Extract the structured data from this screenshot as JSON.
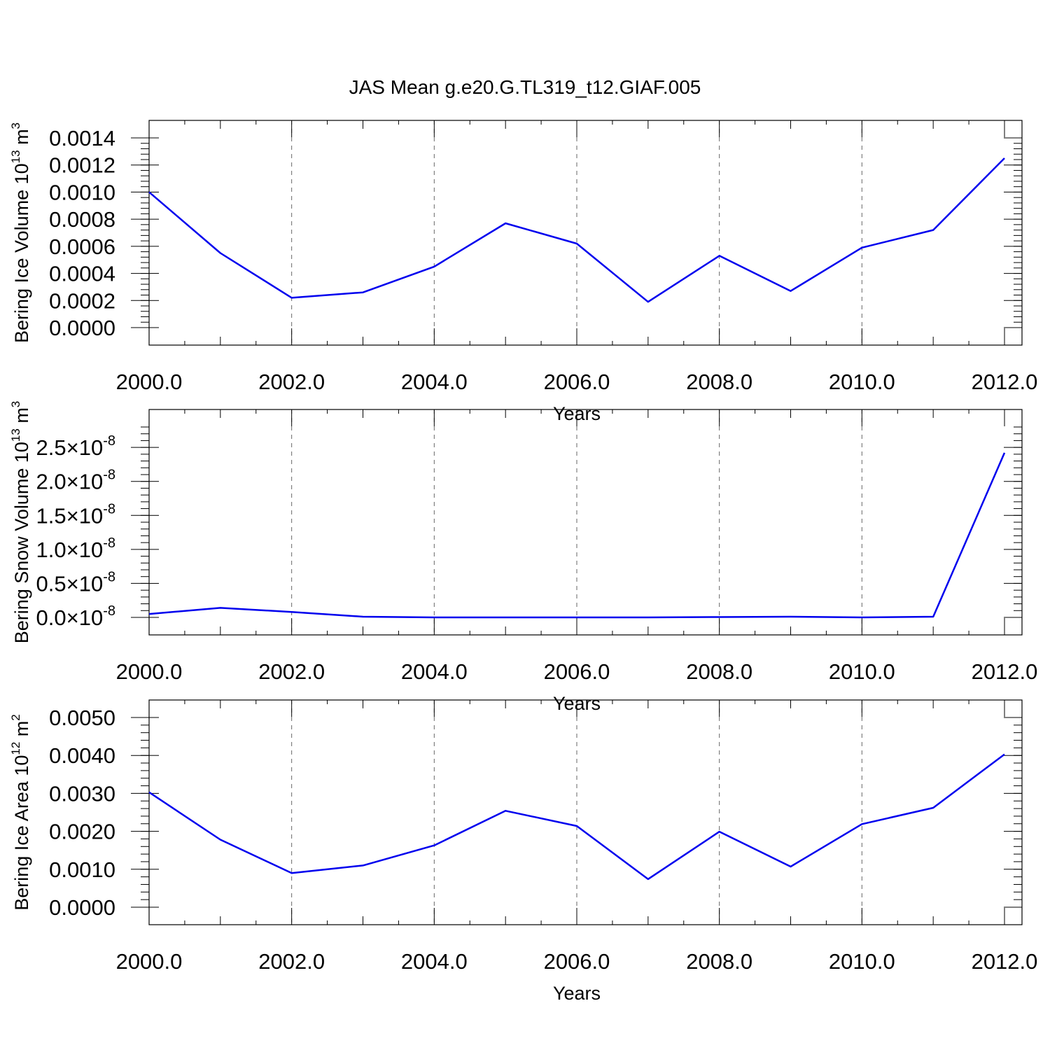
{
  "figure": {
    "title": "JAS Mean g.e20.G.TL319_t12.GIAF.005"
  },
  "chart_data": [
    {
      "type": "line",
      "xlabel": "Years",
      "ylabel": {
        "text": "Bering Ice Volume 10",
        "sup": "13",
        "unit": " m",
        "unit_sup": "3"
      },
      "xlim": [
        2000,
        2012
      ],
      "ylim": [
        0,
        0.0014
      ],
      "x_ticks": [
        2000,
        2002,
        2004,
        2006,
        2008,
        2010,
        2012
      ],
      "x_tick_labels": [
        "2000.0",
        "2002.0",
        "2004.0",
        "2006.0",
        "2008.0",
        "2010.0",
        "2012.0"
      ],
      "y_ticks": [
        0,
        0.0002,
        0.0004,
        0.0006,
        0.0008,
        0.001,
        0.0012,
        0.0014
      ],
      "y_tick_labels": [
        "0.0000",
        "0.0002",
        "0.0004",
        "0.0006",
        "0.0008",
        "0.0010",
        "0.0012",
        "0.0014"
      ],
      "grid": "vertical dashed at major x ticks",
      "series": [
        {
          "color": "#0000ee",
          "x": [
            2000,
            2001,
            2002,
            2003,
            2004,
            2005,
            2006,
            2007,
            2008,
            2009,
            2010,
            2011,
            2012
          ],
          "y": [
            0.001,
            0.00055,
            0.00022,
            0.00026,
            0.00045,
            0.00077,
            0.00062,
            0.00019,
            0.00053,
            0.00027,
            0.00059,
            0.00072,
            0.00125
          ]
        }
      ]
    },
    {
      "type": "line",
      "xlabel": "Years",
      "ylabel": {
        "text": "Bering Snow Volume 10",
        "sup": "13",
        "unit": " m",
        "unit_sup": "3"
      },
      "xlim": [
        2000,
        2012
      ],
      "ylim": [
        0,
        2.8e-08
      ],
      "x_ticks": [
        2000,
        2002,
        2004,
        2006,
        2008,
        2010,
        2012
      ],
      "x_tick_labels": [
        "2000.0",
        "2002.0",
        "2004.0",
        "2006.0",
        "2008.0",
        "2010.0",
        "2012.0"
      ],
      "y_ticks": [
        0,
        5e-09,
        1e-08,
        1.5e-08,
        2e-08,
        2.5e-08
      ],
      "y_tick_labels": [
        {
          "mantissa": "0.0",
          "base": "10",
          "exp": "-8"
        },
        {
          "mantissa": "0.5",
          "base": "10",
          "exp": "-8"
        },
        {
          "mantissa": "1.0",
          "base": "10",
          "exp": "-8"
        },
        {
          "mantissa": "1.5",
          "base": "10",
          "exp": "-8"
        },
        {
          "mantissa": "2.0",
          "base": "10",
          "exp": "-8"
        },
        {
          "mantissa": "2.5",
          "base": "10",
          "exp": "-8"
        }
      ],
      "grid": "vertical dashed at major x ticks",
      "series": [
        {
          "color": "#0000ee",
          "x": [
            2000,
            2001,
            2002,
            2003,
            2004,
            2005,
            2006,
            2007,
            2008,
            2009,
            2010,
            2011,
            2012
          ],
          "y": [
            5e-10,
            1.4e-09,
            8e-10,
            1e-10,
            0.0,
            0.0,
            0.0,
            0.0,
            5e-11,
            1e-10,
            0.0,
            1e-10,
            2.42e-08
          ]
        }
      ]
    },
    {
      "type": "line",
      "xlabel": "Years",
      "ylabel": {
        "text": "Bering Ice Area 10",
        "sup": "12",
        "unit": " m",
        "unit_sup": "2"
      },
      "xlim": [
        2000,
        2012
      ],
      "ylim": [
        0,
        0.005
      ],
      "x_ticks": [
        2000,
        2002,
        2004,
        2006,
        2008,
        2010,
        2012
      ],
      "x_tick_labels": [
        "2000.0",
        "2002.0",
        "2004.0",
        "2006.0",
        "2008.0",
        "2010.0",
        "2012.0"
      ],
      "y_ticks": [
        0,
        0.001,
        0.002,
        0.003,
        0.004,
        0.005
      ],
      "y_tick_labels": [
        "0.0000",
        "0.0010",
        "0.0020",
        "0.0030",
        "0.0040",
        "0.0050"
      ],
      "grid": "vertical dashed at major x ticks",
      "series": [
        {
          "color": "#0000ee",
          "x": [
            2000,
            2001,
            2002,
            2003,
            2004,
            2005,
            2006,
            2007,
            2008,
            2009,
            2010,
            2011,
            2012
          ],
          "y": [
            0.00303,
            0.00178,
            0.0009,
            0.0011,
            0.00163,
            0.00254,
            0.00214,
            0.00074,
            0.00199,
            0.00107,
            0.00219,
            0.00262,
            0.00403
          ]
        }
      ]
    }
  ]
}
